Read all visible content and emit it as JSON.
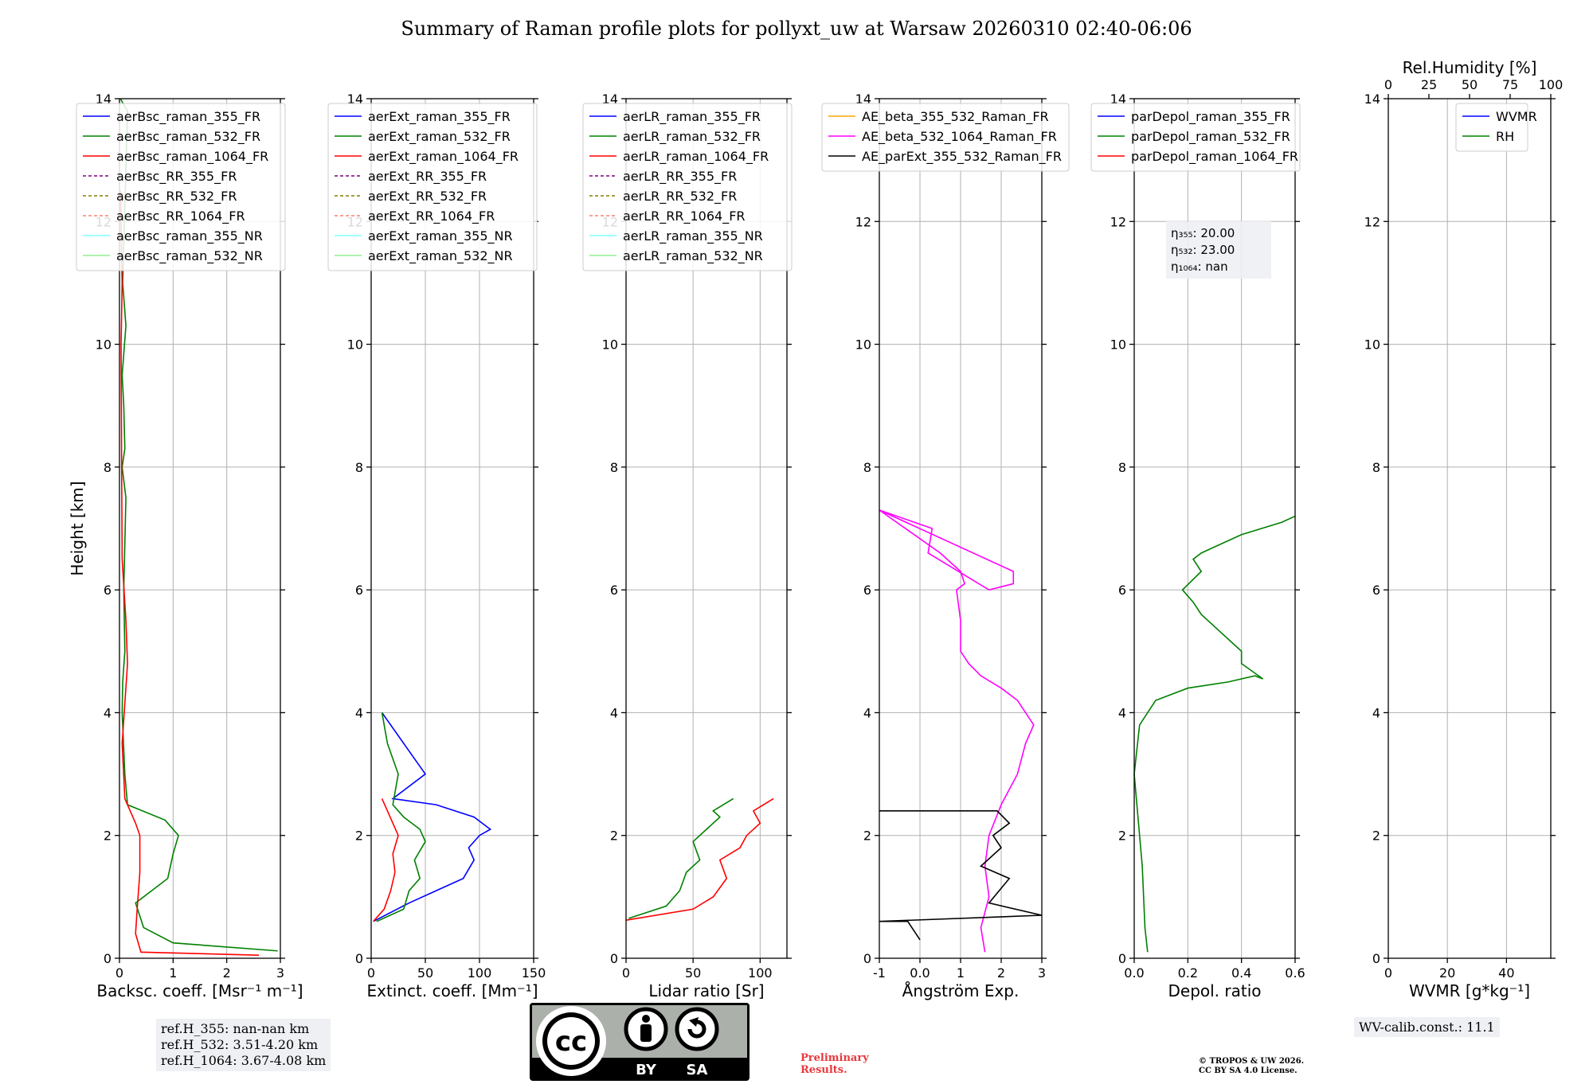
{
  "title": "Summary of Raman profile plots for pollyxt_uw at Warsaw 20260310 02:40-06:06",
  "colors": {
    "blue": "#0000ff",
    "green": "#008000",
    "red": "#ff0000",
    "purple": "#800080",
    "olive": "#808000",
    "salmon": "#fa8072",
    "cyan": "#80ffff",
    "lightgreen": "#90ee90",
    "orange": "#ffa500",
    "magenta": "#ff00ff",
    "black": "#000000"
  },
  "chart_data": [
    {
      "type": "line",
      "ylabel": "Height [km]",
      "xlabel": "Backsc. coeff. [Msr⁻¹ m⁻¹]",
      "xlim": [
        0,
        3
      ],
      "ylim": [
        0,
        14
      ],
      "xticks": [
        0,
        1,
        2,
        3
      ],
      "yticks": [
        0,
        2,
        4,
        6,
        8,
        10,
        12,
        14
      ],
      "legend": [
        {
          "name": "aerBsc_raman_355_FR",
          "color": "blue",
          "dash": false
        },
        {
          "name": "aerBsc_raman_532_FR",
          "color": "green",
          "dash": false
        },
        {
          "name": "aerBsc_raman_1064_FR",
          "color": "red",
          "dash": false
        },
        {
          "name": "aerBsc_RR_355_FR",
          "color": "purple",
          "dash": true
        },
        {
          "name": "aerBsc_RR_532_FR",
          "color": "olive",
          "dash": true
        },
        {
          "name": "aerBsc_RR_1064_FR",
          "color": "salmon",
          "dash": true
        },
        {
          "name": "aerBsc_raman_355_NR",
          "color": "cyan",
          "dash": false
        },
        {
          "name": "aerBsc_raman_532_NR",
          "color": "lightgreen",
          "dash": false
        }
      ],
      "series": [
        {
          "name": "aerBsc_raman_532_FR",
          "color": "green",
          "x": [
            2.95,
            1.0,
            0.45,
            0.3,
            0.9,
            1.0,
            1.1,
            0.85,
            0.15,
            0.1,
            0.05,
            0.06,
            0.1,
            0.08,
            0.12,
            0.05,
            0.1,
            0.08,
            0.05,
            0.12,
            0.06,
            0.15,
            0.05,
            0.02
          ],
          "y": [
            0.12,
            0.25,
            0.5,
            0.9,
            1.3,
            1.7,
            2.0,
            2.25,
            2.5,
            3.0,
            4.0,
            4.5,
            5.0,
            6.0,
            7.5,
            8.0,
            8.3,
            9.0,
            9.5,
            10.3,
            11.0,
            13.8,
            13.95,
            14.0
          ]
        },
        {
          "name": "aerBsc_raman_1064_FR",
          "color": "red",
          "x": [
            2.6,
            0.4,
            0.3,
            0.33,
            0.38,
            0.38,
            0.3,
            0.1,
            0.05,
            0.15,
            0.12,
            0.05,
            0.04,
            0.03,
            0.05,
            0.02
          ],
          "y": [
            0.05,
            0.1,
            0.4,
            0.8,
            1.4,
            2.0,
            2.2,
            2.6,
            3.5,
            4.8,
            5.5,
            6.5,
            8.0,
            10.0,
            11.0,
            12.5
          ]
        }
      ]
    },
    {
      "type": "line",
      "xlabel": "Extinct. coeff. [Mm⁻¹]",
      "xlim": [
        0,
        150
      ],
      "ylim": [
        0,
        14
      ],
      "xticks": [
        0,
        50,
        100,
        150
      ],
      "yticks": [
        0,
        2,
        4,
        6,
        8,
        10,
        12,
        14
      ],
      "legend": [
        {
          "name": "aerExt_raman_355_FR",
          "color": "blue",
          "dash": false
        },
        {
          "name": "aerExt_raman_532_FR",
          "color": "green",
          "dash": false
        },
        {
          "name": "aerExt_raman_1064_FR",
          "color": "red",
          "dash": false
        },
        {
          "name": "aerExt_RR_355_FR",
          "color": "purple",
          "dash": true
        },
        {
          "name": "aerExt_RR_532_FR",
          "color": "olive",
          "dash": true
        },
        {
          "name": "aerExt_RR_1064_FR",
          "color": "salmon",
          "dash": true
        },
        {
          "name": "aerExt_raman_355_NR",
          "color": "cyan",
          "dash": false
        },
        {
          "name": "aerExt_raman_532_NR",
          "color": "lightgreen",
          "dash": false
        }
      ],
      "series": [
        {
          "name": "aerExt_raman_355_FR",
          "color": "blue",
          "x": [
            2,
            35,
            60,
            85,
            95,
            90,
            100,
            110,
            95,
            60,
            20,
            50,
            30,
            10
          ],
          "y": [
            0.6,
            0.9,
            1.1,
            1.3,
            1.6,
            1.8,
            2.0,
            2.1,
            2.3,
            2.5,
            2.6,
            3.0,
            3.5,
            4.0
          ]
        },
        {
          "name": "aerExt_raman_532_FR",
          "color": "green",
          "x": [
            5,
            30,
            35,
            45,
            40,
            50,
            45,
            30,
            20,
            25,
            15,
            10
          ],
          "y": [
            0.6,
            0.8,
            1.1,
            1.3,
            1.6,
            1.9,
            2.1,
            2.3,
            2.5,
            3.0,
            3.5,
            4.0
          ]
        },
        {
          "name": "aerExt_raman_1064_FR",
          "color": "red",
          "x": [
            2,
            12,
            18,
            22,
            20,
            25,
            20,
            15,
            10
          ],
          "y": [
            0.6,
            0.8,
            1.1,
            1.4,
            1.7,
            2.0,
            2.2,
            2.4,
            2.6
          ]
        }
      ]
    },
    {
      "type": "line",
      "xlabel": "Lidar ratio [Sr]",
      "xlim": [
        0,
        120
      ],
      "ylim": [
        0,
        14
      ],
      "xticks": [
        0,
        50,
        100
      ],
      "yticks": [
        0,
        2,
        4,
        6,
        8,
        10,
        12,
        14
      ],
      "legend": [
        {
          "name": "aerLR_raman_355_FR",
          "color": "blue",
          "dash": false
        },
        {
          "name": "aerLR_raman_532_FR",
          "color": "green",
          "dash": false
        },
        {
          "name": "aerLR_raman_1064_FR",
          "color": "red",
          "dash": false
        },
        {
          "name": "aerLR_RR_355_FR",
          "color": "purple",
          "dash": true
        },
        {
          "name": "aerLR_RR_532_FR",
          "color": "olive",
          "dash": true
        },
        {
          "name": "aerLR_RR_1064_FR",
          "color": "salmon",
          "dash": true
        },
        {
          "name": "aerLR_raman_355_NR",
          "color": "cyan",
          "dash": false
        },
        {
          "name": "aerLR_raman_532_NR",
          "color": "lightgreen",
          "dash": false
        }
      ],
      "series": [
        {
          "name": "aerLR_raman_532_FR",
          "color": "green",
          "x": [
            2,
            30,
            40,
            45,
            55,
            50,
            60,
            70,
            65,
            80
          ],
          "y": [
            0.65,
            0.85,
            1.1,
            1.4,
            1.6,
            1.9,
            2.1,
            2.3,
            2.4,
            2.6
          ]
        },
        {
          "name": "aerLR_raman_1064_FR",
          "color": "red",
          "x": [
            0,
            50,
            65,
            75,
            70,
            85,
            90,
            100,
            95,
            110
          ],
          "y": [
            0.62,
            0.8,
            1.0,
            1.3,
            1.6,
            1.8,
            2.0,
            2.2,
            2.4,
            2.6
          ]
        }
      ]
    },
    {
      "type": "line",
      "xlabel": "Ångström Exp.",
      "xlim": [
        -1,
        3
      ],
      "ylim": [
        0,
        14
      ],
      "xticks": [
        -1,
        0,
        1,
        2,
        3
      ],
      "yticks": [
        0,
        2,
        4,
        6,
        8,
        10,
        12,
        14
      ],
      "legend": [
        {
          "name": "AE_beta_355_532_Raman_FR",
          "color": "orange",
          "dash": false
        },
        {
          "name": "AE_beta_532_1064_Raman_FR",
          "color": "magenta",
          "dash": false
        },
        {
          "name": "AE_parExt_355_532_Raman_FR",
          "color": "black",
          "dash": false
        }
      ],
      "series": [
        {
          "name": "AE_beta_532_1064_Raman_FR",
          "color": "magenta",
          "x": [
            1.6,
            1.5,
            1.7,
            1.6,
            1.7,
            2.0,
            2.4,
            2.6,
            2.8,
            2.4,
            2.0,
            1.5,
            1.2,
            1.0,
            1.0,
            0.9,
            1.1,
            1.0,
            0.5,
            -1.0,
            2.3,
            2.3,
            1.7,
            0.2,
            0.3,
            -1.0
          ],
          "y": [
            0.1,
            0.5,
            1.0,
            1.5,
            2.0,
            2.5,
            3.0,
            3.5,
            3.8,
            4.2,
            4.4,
            4.6,
            4.8,
            5.0,
            5.5,
            6.0,
            6.1,
            6.3,
            6.6,
            7.3,
            6.3,
            6.1,
            6.0,
            6.6,
            7.0,
            7.3
          ]
        },
        {
          "name": "AE_parExt_355_532_Raman_FR",
          "color": "black",
          "x": [
            0,
            -0.3,
            -1.0,
            3.0,
            1.7,
            2.2,
            1.5,
            2.0,
            1.8,
            2.2,
            1.9,
            -1.0
          ],
          "y": [
            0.3,
            0.6,
            0.6,
            0.7,
            0.9,
            1.3,
            1.5,
            1.8,
            2.0,
            2.2,
            2.4,
            2.4
          ]
        }
      ]
    },
    {
      "type": "line",
      "xlabel": "Depol. ratio",
      "xlim": [
        0,
        0.6
      ],
      "ylim": [
        0,
        14
      ],
      "xticks": [
        0.0,
        0.2,
        0.4,
        0.6
      ],
      "yticks": [
        0,
        2,
        4,
        6,
        8,
        10,
        12,
        14
      ],
      "legend": [
        {
          "name": "parDepol_raman_355_FR",
          "color": "blue",
          "dash": false
        },
        {
          "name": "parDepol_raman_532_FR",
          "color": "green",
          "dash": false
        },
        {
          "name": "parDepol_raman_1064_FR",
          "color": "red",
          "dash": false
        }
      ],
      "annotation": [
        "η₃₅₅: 20.00",
        "η₅₃₂: 23.00",
        "η₁₀₆₄: nan"
      ],
      "series": [
        {
          "name": "parDepol_raman_532_FR",
          "color": "green",
          "x": [
            0.05,
            0.04,
            0.03,
            0.01,
            0.0,
            0.02,
            0.08,
            0.2,
            0.35,
            0.45,
            0.48,
            0.4,
            0.4,
            0.35,
            0.3,
            0.25,
            0.22,
            0.18,
            0.25,
            0.22,
            0.25,
            0.3,
            0.4,
            0.55,
            0.6
          ],
          "y": [
            0.1,
            0.5,
            1.5,
            2.5,
            3.0,
            3.8,
            4.2,
            4.4,
            4.5,
            4.6,
            4.55,
            4.8,
            5.0,
            5.2,
            5.4,
            5.6,
            5.8,
            6.0,
            6.3,
            6.5,
            6.6,
            6.7,
            6.9,
            7.1,
            7.2
          ]
        }
      ]
    },
    {
      "type": "line",
      "xlabel": "WVMR [g*kg⁻¹]",
      "top_xlabel": "Rel.Humidity [%]",
      "xlim": [
        0,
        55
      ],
      "ylim": [
        0,
        14
      ],
      "top_xlim": [
        0,
        100
      ],
      "xticks": [
        0,
        20,
        40
      ],
      "top_xticks": [
        0,
        25,
        50,
        75,
        100
      ],
      "yticks": [
        0,
        2,
        4,
        6,
        8,
        10,
        12,
        14
      ],
      "legend": [
        {
          "name": "WVMR",
          "color": "blue",
          "dash": false
        },
        {
          "name": "RH",
          "color": "green",
          "dash": false
        }
      ],
      "series": []
    }
  ],
  "ref_heights": [
    "ref.H_355: nan-nan km",
    "ref.H_532: 3.51-4.20 km",
    "ref.H_1064: 3.67-4.08 km"
  ],
  "wv_calib": "WV-calib.const.: 11.1",
  "license_badge": {
    "left": "BY",
    "right": "SA"
  },
  "preliminary": [
    "Preliminary",
    "Results."
  ],
  "copyright": [
    "© TROPOS & UW 2026.",
    "CC BY SA 4.0 License."
  ]
}
